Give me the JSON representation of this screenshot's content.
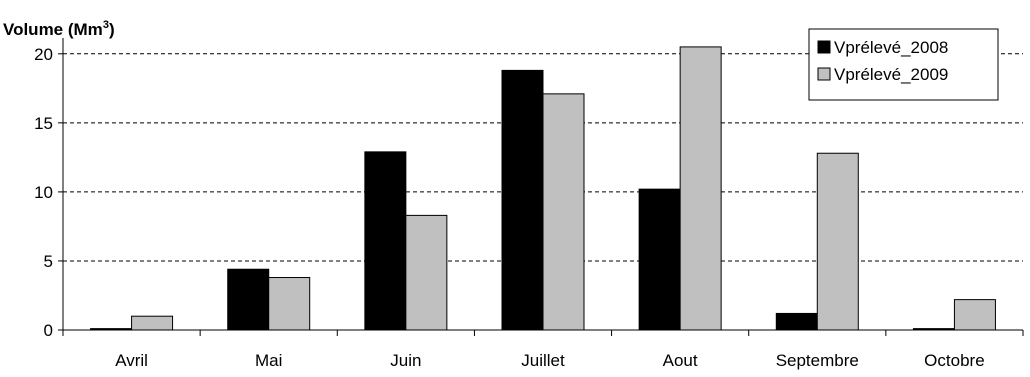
{
  "chart_data": {
    "type": "bar",
    "title": "",
    "ylabel": "Volume (Mm",
    "ylabel_sup": "3",
    "ylabel_suffix": ")",
    "xlabel": "",
    "categories": [
      "Avril",
      "Mai",
      "Juin",
      "Juillet",
      "Aout",
      "Septembre",
      "Octobre"
    ],
    "series": [
      {
        "name": "Vprélevé_2008",
        "color": "#000000",
        "values": [
          0.1,
          4.4,
          12.9,
          18.8,
          10.2,
          1.2,
          0.1
        ]
      },
      {
        "name": "Vprélevé_2009",
        "color": "#c0c0c0",
        "values": [
          1.0,
          3.8,
          8.3,
          17.1,
          20.5,
          12.8,
          2.2
        ]
      }
    ],
    "ylim": [
      0,
      21
    ],
    "yticks": [
      0,
      5,
      10,
      15,
      20
    ],
    "grid": true,
    "grid_style": "dashed",
    "legend_position": "top-right"
  }
}
